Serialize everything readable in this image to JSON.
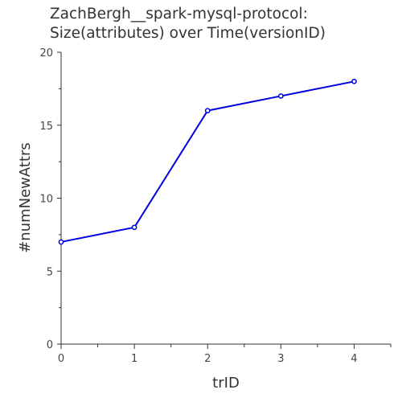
{
  "chart_data": {
    "type": "line",
    "title_lines": [
      "ZachBergh__spark-mysql-protocol:",
      "Size(attributes) over Time(versionID)"
    ],
    "xlabel": "trID",
    "ylabel": "#numNewAttrs",
    "x": [
      0,
      1,
      2,
      3,
      4
    ],
    "series": [
      {
        "values": [
          7,
          8,
          16,
          17,
          18
        ]
      }
    ],
    "xlim": [
      0,
      4.5
    ],
    "ylim": [
      0,
      20
    ],
    "x_ticks": [
      0,
      1,
      2,
      3,
      4
    ],
    "y_ticks": [
      0,
      5,
      10,
      15,
      20
    ],
    "series_color": "#0000dd",
    "grid": false,
    "legend": "none"
  }
}
